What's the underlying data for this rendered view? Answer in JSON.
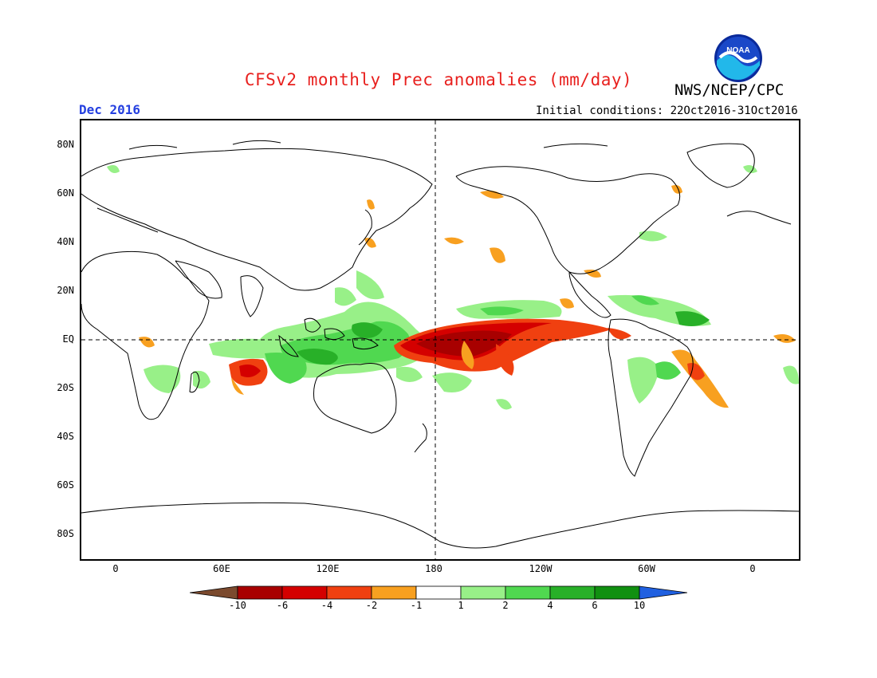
{
  "title": "CFSv2 monthly Prec anomalies (mm/day)",
  "period": "Dec 2016",
  "initial_conditions": "Initial conditions: 22Oct2016-31Oct2016",
  "agency": "NWS/NCEP/CPC",
  "logo_text": "NOAA",
  "lat_labels": [
    "80N",
    "60N",
    "40N",
    "20N",
    "EQ",
    "20S",
    "40S",
    "60S",
    "80S"
  ],
  "lon_labels": [
    "0",
    "60E",
    "120E",
    "180",
    "120W",
    "60W",
    "0"
  ],
  "colorbar": {
    "labels": [
      "-10",
      "-6",
      "-4",
      "-2",
      "-1",
      "1",
      "2",
      "4",
      "6",
      "10"
    ],
    "colors": [
      "#7b4a2e",
      "#a80000",
      "#d40000",
      "#f04010",
      "#f8a020",
      "#ffffff",
      "#98f088",
      "#50d850",
      "#28b028",
      "#109010",
      "#2060e0"
    ]
  }
}
